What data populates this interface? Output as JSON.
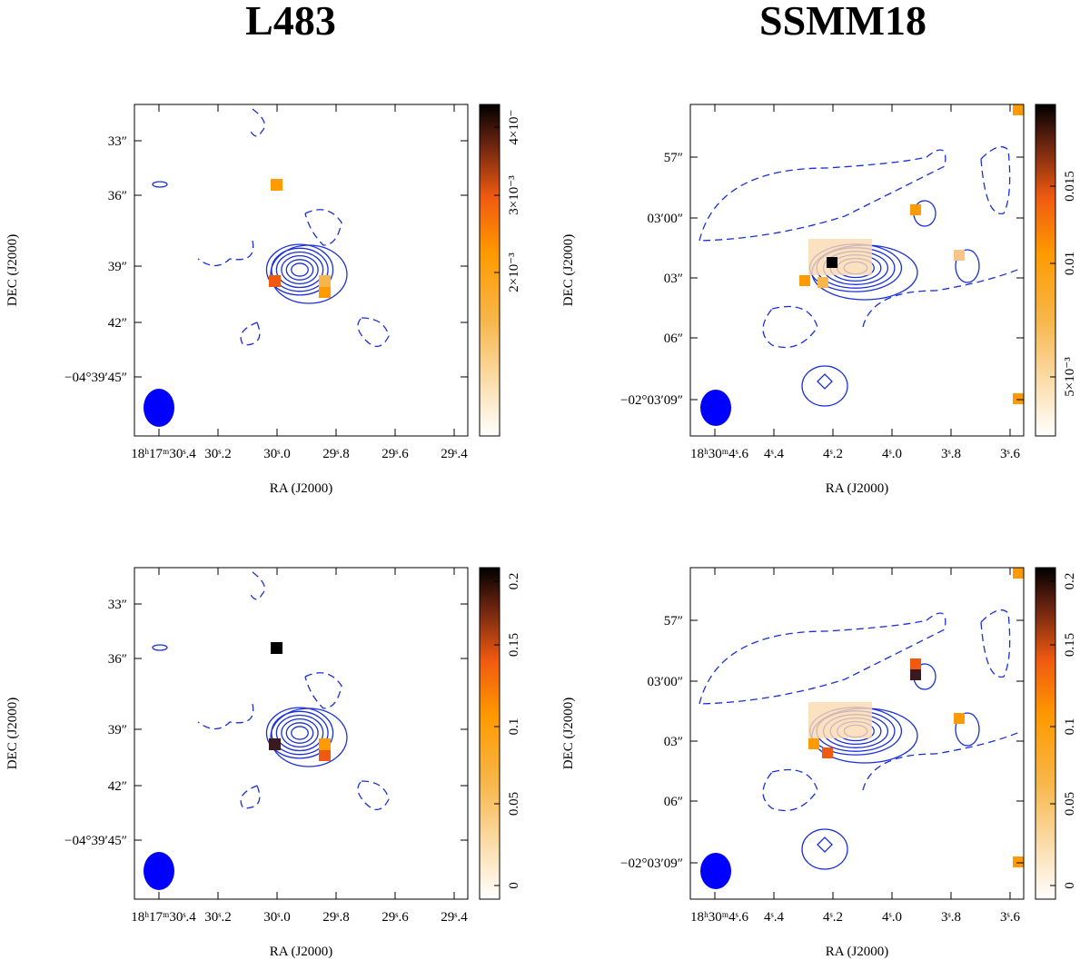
{
  "titles": [
    "L483",
    "SSMM18"
  ],
  "panels": [
    {
      "xlabel": "RA (J2000)",
      "ylabel": "DEC (J2000)",
      "xticks": [
        "18ʰ17ᵐ30ˢ.4",
        "30ˢ.2",
        "30ˢ.0",
        "29ˢ.8",
        "29ˢ.6",
        "29ˢ.4"
      ],
      "yticks": [
        "33″",
        "36″",
        "39″",
        "42″",
        "−04°39′45″"
      ],
      "colorbar_ticks": [
        "4×10⁻",
        "3×10⁻³",
        "2×10⁻³"
      ]
    },
    {
      "xlabel": "RA (J2000)",
      "ylabel": "DEC (J2000)",
      "xticks": [
        "18ʰ30ᵐ4ˢ.6",
        "4ˢ.4",
        "4ˢ.2",
        "4ˢ.0",
        "3ˢ.8",
        "3ˢ.6"
      ],
      "yticks": [
        "57″",
        "03′00″",
        "03″",
        "06″",
        "−02°03′09″"
      ],
      "colorbar_ticks": [
        "0.015",
        "0.01",
        "5×10⁻³"
      ]
    },
    {
      "xlabel": "RA (J2000)",
      "ylabel": "DEC (J2000)",
      "xticks": [
        "18ʰ17ᵐ30ˢ.4",
        "30ˢ.2",
        "30ˢ.0",
        "29ˢ.8",
        "29ˢ.6",
        "29ˢ.4"
      ],
      "yticks": [
        "33″",
        "36″",
        "39″",
        "42″",
        "−04°39′45″"
      ],
      "colorbar_ticks": [
        "0.2",
        "0.15",
        "0.1",
        "0.05",
        "0"
      ]
    },
    {
      "xlabel": "RA (J2000)",
      "ylabel": "DEC (J2000)",
      "xticks": [
        "18ʰ30ᵐ4ˢ.6",
        "4ˢ.4",
        "4ˢ.2",
        "4ˢ.0",
        "3ˢ.8",
        "3ˢ.6"
      ],
      "yticks": [
        "57″",
        "03′00″",
        "03″",
        "06″",
        "−02°03′09″"
      ],
      "colorbar_ticks": [
        "0.2",
        "0.15",
        "0.1",
        "0.05",
        "0"
      ]
    }
  ]
}
